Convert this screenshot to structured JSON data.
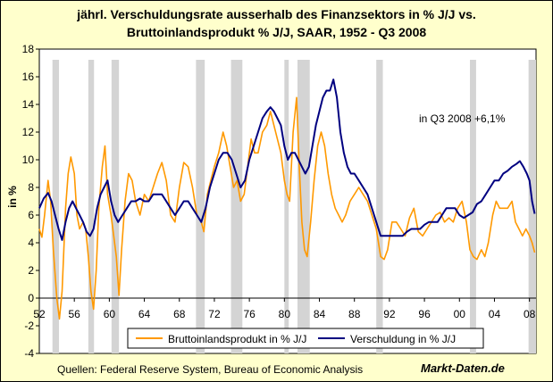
{
  "chart_data": {
    "type": "line",
    "title_lines": [
      "jährl. Verschuldungsrate ausserhalb des Finanzsektors in % J/J vs.",
      "Bruttoinlandsprodukt % J/J, SAAR, 1952 - Q3 2008"
    ],
    "ylabel": "in %",
    "xlabel": "",
    "ylim": [
      -4,
      18
    ],
    "y_ticks": [
      -4,
      -2,
      0,
      2,
      4,
      6,
      8,
      10,
      12,
      14,
      16,
      18
    ],
    "x_ticks": [
      {
        "label": "52",
        "year": 1952
      },
      {
        "label": "56",
        "year": 1956
      },
      {
        "label": "60",
        "year": 1960
      },
      {
        "label": "64",
        "year": 1964
      },
      {
        "label": "68",
        "year": 1968
      },
      {
        "label": "72",
        "year": 1972
      },
      {
        "label": "76",
        "year": 1976
      },
      {
        "label": "80",
        "year": 1980
      },
      {
        "label": "84",
        "year": 1984
      },
      {
        "label": "88",
        "year": 1988
      },
      {
        "label": "92",
        "year": 1992
      },
      {
        "label": "96",
        "year": 1996
      },
      {
        "label": "00",
        "year": 2000
      },
      {
        "label": "04",
        "year": 2004
      },
      {
        "label": "08",
        "year": 2008
      }
    ],
    "xlim": [
      1952,
      2008.75
    ],
    "grid": false,
    "recessions": [
      [
        1953.5,
        1954.25
      ],
      [
        1957.6,
        1958.25
      ],
      [
        1960.25,
        1961.1
      ],
      [
        1969.9,
        1970.9
      ],
      [
        1973.9,
        1975.2
      ],
      [
        1980.0,
        1980.5
      ],
      [
        1981.5,
        1982.9
      ],
      [
        1990.5,
        1991.25
      ],
      [
        2001.2,
        2001.9
      ],
      [
        2007.9,
        2008.75
      ]
    ],
    "annotation": "in Q3 2008 +6,1%",
    "legend_position": "bottom",
    "series": [
      {
        "name": "Bruttoinlandsprodukt in % J/J",
        "color": "#ff9900",
        "points": [
          [
            1952.0,
            5.0
          ],
          [
            1952.3,
            4.4
          ],
          [
            1952.6,
            6.0
          ],
          [
            1953.0,
            8.5
          ],
          [
            1953.3,
            7.0
          ],
          [
            1953.6,
            3.5
          ],
          [
            1954.0,
            0.0
          ],
          [
            1954.3,
            -1.5
          ],
          [
            1954.6,
            0.5
          ],
          [
            1955.0,
            6.5
          ],
          [
            1955.3,
            9.0
          ],
          [
            1955.6,
            10.2
          ],
          [
            1956.0,
            9.0
          ],
          [
            1956.3,
            6.0
          ],
          [
            1956.6,
            5.0
          ],
          [
            1957.0,
            5.5
          ],
          [
            1957.3,
            5.0
          ],
          [
            1957.6,
            3.0
          ],
          [
            1957.9,
            0.5
          ],
          [
            1958.2,
            -0.8
          ],
          [
            1958.5,
            2.0
          ],
          [
            1958.8,
            6.5
          ],
          [
            1959.2,
            9.5
          ],
          [
            1959.5,
            11.0
          ],
          [
            1959.8,
            7.5
          ],
          [
            1960.2,
            6.0
          ],
          [
            1960.5,
            4.5
          ],
          [
            1960.8,
            3.0
          ],
          [
            1961.1,
            0.2
          ],
          [
            1961.4,
            3.5
          ],
          [
            1961.8,
            7.0
          ],
          [
            1962.2,
            9.0
          ],
          [
            1962.6,
            8.5
          ],
          [
            1963.0,
            7.0
          ],
          [
            1963.5,
            6.0
          ],
          [
            1964.0,
            7.5
          ],
          [
            1964.5,
            7.0
          ],
          [
            1965.0,
            8.0
          ],
          [
            1965.5,
            9.0
          ],
          [
            1966.0,
            9.8
          ],
          [
            1966.5,
            8.5
          ],
          [
            1967.0,
            6.0
          ],
          [
            1967.5,
            5.5
          ],
          [
            1968.0,
            8.0
          ],
          [
            1968.5,
            9.8
          ],
          [
            1969.0,
            9.5
          ],
          [
            1969.5,
            8.0
          ],
          [
            1970.0,
            6.0
          ],
          [
            1970.5,
            5.5
          ],
          [
            1970.8,
            4.8
          ],
          [
            1971.2,
            7.5
          ],
          [
            1971.6,
            8.5
          ],
          [
            1972.0,
            9.5
          ],
          [
            1972.5,
            10.5
          ],
          [
            1973.0,
            12.0
          ],
          [
            1973.4,
            11.0
          ],
          [
            1973.8,
            9.5
          ],
          [
            1974.2,
            8.0
          ],
          [
            1974.6,
            8.5
          ],
          [
            1975.0,
            7.0
          ],
          [
            1975.4,
            7.5
          ],
          [
            1975.8,
            9.5
          ],
          [
            1976.2,
            11.5
          ],
          [
            1976.6,
            10.5
          ],
          [
            1977.0,
            10.5
          ],
          [
            1977.5,
            12.0
          ],
          [
            1978.0,
            12.5
          ],
          [
            1978.4,
            13.5
          ],
          [
            1978.8,
            12.5
          ],
          [
            1979.2,
            11.5
          ],
          [
            1979.6,
            10.5
          ],
          [
            1980.0,
            8.5
          ],
          [
            1980.3,
            7.5
          ],
          [
            1980.6,
            7.0
          ],
          [
            1981.0,
            12.0
          ],
          [
            1981.4,
            14.5
          ],
          [
            1981.7,
            9.5
          ],
          [
            1982.0,
            5.5
          ],
          [
            1982.3,
            3.5
          ],
          [
            1982.6,
            3.0
          ],
          [
            1983.0,
            5.5
          ],
          [
            1983.4,
            8.5
          ],
          [
            1983.8,
            11.0
          ],
          [
            1984.2,
            12.0
          ],
          [
            1984.6,
            11.0
          ],
          [
            1985.0,
            9.0
          ],
          [
            1985.4,
            7.5
          ],
          [
            1985.8,
            6.5
          ],
          [
            1986.2,
            6.0
          ],
          [
            1986.6,
            5.5
          ],
          [
            1987.0,
            6.0
          ],
          [
            1987.5,
            7.0
          ],
          [
            1988.0,
            7.5
          ],
          [
            1988.5,
            8.0
          ],
          [
            1989.0,
            7.5
          ],
          [
            1989.5,
            7.0
          ],
          [
            1990.0,
            6.0
          ],
          [
            1990.5,
            5.0
          ],
          [
            1991.0,
            3.0
          ],
          [
            1991.4,
            2.8
          ],
          [
            1991.8,
            3.5
          ],
          [
            1992.3,
            5.5
          ],
          [
            1992.8,
            5.5
          ],
          [
            1993.3,
            5.0
          ],
          [
            1993.8,
            4.5
          ],
          [
            1994.3,
            5.8
          ],
          [
            1994.8,
            6.5
          ],
          [
            1995.3,
            4.8
          ],
          [
            1995.8,
            4.5
          ],
          [
            1996.3,
            5.0
          ],
          [
            1996.8,
            5.5
          ],
          [
            1997.3,
            6.0
          ],
          [
            1997.8,
            6.2
          ],
          [
            1998.3,
            5.5
          ],
          [
            1998.8,
            5.8
          ],
          [
            1999.3,
            5.5
          ],
          [
            1999.8,
            6.5
          ],
          [
            2000.3,
            7.0
          ],
          [
            2000.8,
            5.5
          ],
          [
            2001.2,
            3.5
          ],
          [
            2001.6,
            3.0
          ],
          [
            2002.0,
            2.8
          ],
          [
            2002.5,
            3.5
          ],
          [
            2002.9,
            3.0
          ],
          [
            2003.3,
            4.0
          ],
          [
            2003.8,
            6.0
          ],
          [
            2004.2,
            7.0
          ],
          [
            2004.6,
            6.5
          ],
          [
            2005.0,
            6.5
          ],
          [
            2005.5,
            6.5
          ],
          [
            2006.0,
            7.0
          ],
          [
            2006.4,
            5.5
          ],
          [
            2006.8,
            5.0
          ],
          [
            2007.2,
            4.5
          ],
          [
            2007.6,
            5.0
          ],
          [
            2008.0,
            4.5
          ],
          [
            2008.3,
            4.0
          ],
          [
            2008.6,
            3.3
          ]
        ]
      },
      {
        "name": "Verschuldung in % J/J",
        "color": "#000080",
        "points": [
          [
            1952.0,
            6.5
          ],
          [
            1952.5,
            7.2
          ],
          [
            1953.0,
            7.6
          ],
          [
            1953.4,
            7.0
          ],
          [
            1953.8,
            6.0
          ],
          [
            1954.2,
            5.0
          ],
          [
            1954.6,
            4.2
          ],
          [
            1955.0,
            5.5
          ],
          [
            1955.4,
            6.5
          ],
          [
            1955.8,
            7.0
          ],
          [
            1956.2,
            6.5
          ],
          [
            1956.6,
            6.0
          ],
          [
            1957.0,
            5.5
          ],
          [
            1957.4,
            4.8
          ],
          [
            1957.8,
            4.5
          ],
          [
            1958.2,
            5.0
          ],
          [
            1958.6,
            6.5
          ],
          [
            1959.0,
            7.5
          ],
          [
            1959.4,
            8.0
          ],
          [
            1959.8,
            8.5
          ],
          [
            1960.2,
            7.0
          ],
          [
            1960.6,
            6.0
          ],
          [
            1961.0,
            5.5
          ],
          [
            1961.5,
            6.0
          ],
          [
            1962.0,
            6.5
          ],
          [
            1962.5,
            7.0
          ],
          [
            1963.0,
            7.0
          ],
          [
            1963.5,
            7.2
          ],
          [
            1964.0,
            7.0
          ],
          [
            1964.5,
            7.0
          ],
          [
            1965.0,
            7.5
          ],
          [
            1965.5,
            7.5
          ],
          [
            1966.0,
            7.5
          ],
          [
            1966.5,
            7.0
          ],
          [
            1967.0,
            6.5
          ],
          [
            1967.5,
            6.0
          ],
          [
            1968.0,
            6.5
          ],
          [
            1968.5,
            7.0
          ],
          [
            1969.0,
            7.0
          ],
          [
            1969.5,
            6.5
          ],
          [
            1970.0,
            6.0
          ],
          [
            1970.5,
            5.5
          ],
          [
            1971.0,
            6.5
          ],
          [
            1971.5,
            8.0
          ],
          [
            1972.0,
            9.0
          ],
          [
            1972.5,
            10.0
          ],
          [
            1973.0,
            10.5
          ],
          [
            1973.5,
            10.5
          ],
          [
            1974.0,
            10.0
          ],
          [
            1974.5,
            9.0
          ],
          [
            1975.0,
            8.0
          ],
          [
            1975.5,
            8.5
          ],
          [
            1976.0,
            10.0
          ],
          [
            1976.5,
            11.0
          ],
          [
            1977.0,
            12.0
          ],
          [
            1977.5,
            13.0
          ],
          [
            1978.0,
            13.5
          ],
          [
            1978.4,
            13.8
          ],
          [
            1978.8,
            13.5
          ],
          [
            1979.2,
            13.0
          ],
          [
            1979.6,
            12.5
          ],
          [
            1980.0,
            11.0
          ],
          [
            1980.4,
            10.0
          ],
          [
            1980.8,
            10.5
          ],
          [
            1981.2,
            10.5
          ],
          [
            1981.6,
            10.0
          ],
          [
            1982.0,
            9.5
          ],
          [
            1982.4,
            9.0
          ],
          [
            1982.8,
            9.5
          ],
          [
            1983.2,
            11.0
          ],
          [
            1983.6,
            12.5
          ],
          [
            1984.0,
            13.5
          ],
          [
            1984.4,
            14.5
          ],
          [
            1984.8,
            15.0
          ],
          [
            1985.2,
            15.0
          ],
          [
            1985.6,
            15.8
          ],
          [
            1986.0,
            14.5
          ],
          [
            1986.4,
            12.0
          ],
          [
            1986.8,
            10.5
          ],
          [
            1987.2,
            9.5
          ],
          [
            1987.6,
            9.0
          ],
          [
            1988.0,
            9.0
          ],
          [
            1988.5,
            8.5
          ],
          [
            1989.0,
            8.0
          ],
          [
            1989.5,
            7.5
          ],
          [
            1990.0,
            6.5
          ],
          [
            1990.5,
            5.5
          ],
          [
            1991.0,
            4.5
          ],
          [
            1991.5,
            4.5
          ],
          [
            1992.0,
            4.5
          ],
          [
            1992.5,
            4.5
          ],
          [
            1993.0,
            4.5
          ],
          [
            1993.5,
            4.5
          ],
          [
            1994.0,
            4.8
          ],
          [
            1994.5,
            5.0
          ],
          [
            1995.0,
            5.0
          ],
          [
            1995.5,
            5.0
          ],
          [
            1996.0,
            5.3
          ],
          [
            1996.5,
            5.5
          ],
          [
            1997.0,
            5.5
          ],
          [
            1997.5,
            5.5
          ],
          [
            1998.0,
            6.0
          ],
          [
            1998.5,
            6.5
          ],
          [
            1999.0,
            6.5
          ],
          [
            1999.5,
            6.5
          ],
          [
            2000.0,
            6.0
          ],
          [
            2000.5,
            5.8
          ],
          [
            2001.0,
            6.0
          ],
          [
            2001.5,
            6.2
          ],
          [
            2002.0,
            6.8
          ],
          [
            2002.5,
            7.0
          ],
          [
            2003.0,
            7.5
          ],
          [
            2003.5,
            8.0
          ],
          [
            2004.0,
            8.5
          ],
          [
            2004.5,
            8.5
          ],
          [
            2005.0,
            9.0
          ],
          [
            2005.5,
            9.2
          ],
          [
            2006.0,
            9.5
          ],
          [
            2006.5,
            9.7
          ],
          [
            2006.9,
            9.9
          ],
          [
            2007.3,
            9.5
          ],
          [
            2007.7,
            9.0
          ],
          [
            2008.0,
            8.5
          ],
          [
            2008.3,
            7.0
          ],
          [
            2008.6,
            6.1
          ]
        ]
      }
    ]
  },
  "footer": {
    "source": "Quellen: Federal Reserve System, Bureau of Economic Analysis",
    "brand": "Markt-Daten.de"
  }
}
